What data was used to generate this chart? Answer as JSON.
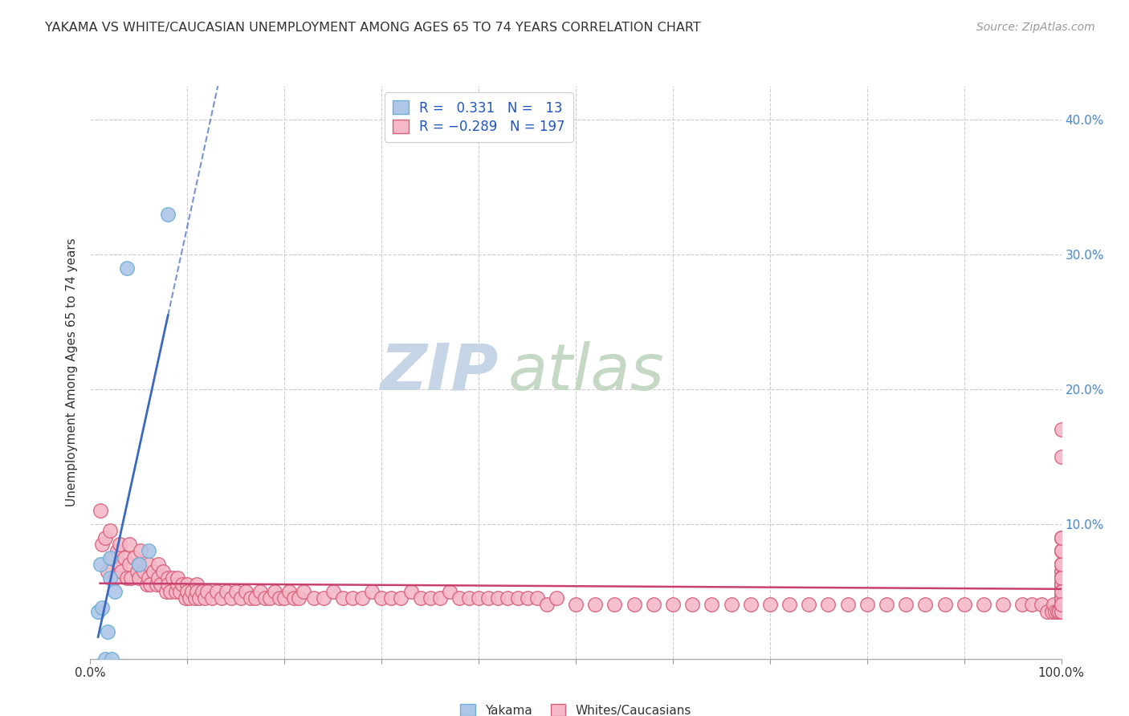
{
  "title": "YAKAMA VS WHITE/CAUCASIAN UNEMPLOYMENT AMONG AGES 65 TO 74 YEARS CORRELATION CHART",
  "source": "Source: ZipAtlas.com",
  "ylabel": "Unemployment Among Ages 65 to 74 years",
  "xlim": [
    0,
    1.0
  ],
  "ylim": [
    0,
    0.425
  ],
  "legend_r_yakama": "0.331",
  "legend_n_yakama": "13",
  "legend_r_white": "-0.289",
  "legend_n_white": "197",
  "yakama_color": "#aec6e8",
  "yakama_edge_color": "#6baed6",
  "white_color": "#f4b8c8",
  "white_edge_color": "#d6607a",
  "trendline_yakama_color": "#3a6abf",
  "trendline_white_color": "#c94070",
  "watermark_zip_color": "#c8d8e8",
  "watermark_atlas_color": "#c8d8c8",
  "background_color": "#ffffff",
  "grid_color": "#cccccc",
  "yakama_x": [
    0.008,
    0.01,
    0.012,
    0.015,
    0.018,
    0.02,
    0.02,
    0.022,
    0.025,
    0.038,
    0.05,
    0.06,
    0.08
  ],
  "yakama_y": [
    0.035,
    0.07,
    0.038,
    0.0,
    0.02,
    0.06,
    0.075,
    0.0,
    0.05,
    0.29,
    0.07,
    0.08,
    0.33
  ],
  "white_x": [
    0.01,
    0.012,
    0.015,
    0.018,
    0.02,
    0.022,
    0.025,
    0.028,
    0.03,
    0.03,
    0.032,
    0.035,
    0.038,
    0.04,
    0.04,
    0.042,
    0.045,
    0.048,
    0.05,
    0.05,
    0.052,
    0.055,
    0.058,
    0.06,
    0.06,
    0.062,
    0.065,
    0.068,
    0.07,
    0.07,
    0.072,
    0.075,
    0.078,
    0.08,
    0.08,
    0.082,
    0.085,
    0.088,
    0.09,
    0.09,
    0.092,
    0.095,
    0.098,
    0.1,
    0.1,
    0.102,
    0.105,
    0.108,
    0.11,
    0.11,
    0.112,
    0.115,
    0.118,
    0.12,
    0.125,
    0.13,
    0.135,
    0.14,
    0.145,
    0.15,
    0.155,
    0.16,
    0.165,
    0.17,
    0.175,
    0.18,
    0.185,
    0.19,
    0.195,
    0.2,
    0.205,
    0.21,
    0.215,
    0.22,
    0.23,
    0.24,
    0.25,
    0.26,
    0.27,
    0.28,
    0.29,
    0.3,
    0.31,
    0.32,
    0.33,
    0.34,
    0.35,
    0.36,
    0.37,
    0.38,
    0.39,
    0.4,
    0.41,
    0.42,
    0.43,
    0.44,
    0.45,
    0.46,
    0.47,
    0.48,
    0.5,
    0.52,
    0.54,
    0.56,
    0.58,
    0.6,
    0.62,
    0.64,
    0.66,
    0.68,
    0.7,
    0.72,
    0.74,
    0.76,
    0.78,
    0.8,
    0.82,
    0.84,
    0.86,
    0.88,
    0.9,
    0.92,
    0.94,
    0.96,
    0.97,
    0.98,
    0.985,
    0.99,
    0.992,
    0.994,
    0.996,
    0.998,
    1.0,
    1.0,
    1.0,
    1.0,
    1.0,
    1.0,
    1.0,
    1.0,
    1.0,
    1.0,
    1.0,
    1.0,
    1.0,
    1.0,
    1.0,
    1.0,
    1.0,
    1.0,
    1.0,
    1.0,
    1.0,
    1.0,
    1.0,
    1.0,
    1.0,
    1.0,
    1.0,
    1.0,
    1.0,
    1.0,
    1.0,
    1.0,
    1.0,
    1.0,
    1.0,
    1.0,
    1.0,
    1.0,
    1.0,
    1.0,
    1.0,
    1.0,
    1.0,
    1.0,
    1.0,
    1.0,
    1.0,
    1.0,
    1.0,
    1.0,
    1.0,
    1.0,
    1.0,
    1.0,
    1.0,
    1.0,
    1.0,
    1.0,
    1.0,
    1.0,
    1.0,
    1.0,
    1.0,
    1.0,
    1.0
  ],
  "white_y": [
    0.11,
    0.085,
    0.09,
    0.065,
    0.095,
    0.075,
    0.06,
    0.08,
    0.085,
    0.07,
    0.065,
    0.075,
    0.06,
    0.07,
    0.085,
    0.06,
    0.075,
    0.065,
    0.07,
    0.06,
    0.08,
    0.065,
    0.055,
    0.07,
    0.06,
    0.055,
    0.065,
    0.055,
    0.07,
    0.06,
    0.055,
    0.065,
    0.05,
    0.06,
    0.055,
    0.05,
    0.06,
    0.05,
    0.055,
    0.06,
    0.05,
    0.055,
    0.045,
    0.055,
    0.05,
    0.045,
    0.05,
    0.045,
    0.055,
    0.05,
    0.045,
    0.05,
    0.045,
    0.05,
    0.045,
    0.05,
    0.045,
    0.05,
    0.045,
    0.05,
    0.045,
    0.05,
    0.045,
    0.045,
    0.05,
    0.045,
    0.045,
    0.05,
    0.045,
    0.045,
    0.05,
    0.045,
    0.045,
    0.05,
    0.045,
    0.045,
    0.05,
    0.045,
    0.045,
    0.045,
    0.05,
    0.045,
    0.045,
    0.045,
    0.05,
    0.045,
    0.045,
    0.045,
    0.05,
    0.045,
    0.045,
    0.045,
    0.045,
    0.045,
    0.045,
    0.045,
    0.045,
    0.045,
    0.04,
    0.045,
    0.04,
    0.04,
    0.04,
    0.04,
    0.04,
    0.04,
    0.04,
    0.04,
    0.04,
    0.04,
    0.04,
    0.04,
    0.04,
    0.04,
    0.04,
    0.04,
    0.04,
    0.04,
    0.04,
    0.04,
    0.04,
    0.04,
    0.04,
    0.04,
    0.04,
    0.04,
    0.035,
    0.035,
    0.04,
    0.035,
    0.035,
    0.035,
    0.05,
    0.06,
    0.07,
    0.08,
    0.055,
    0.045,
    0.065,
    0.05,
    0.04,
    0.07,
    0.055,
    0.06,
    0.08,
    0.045,
    0.055,
    0.09,
    0.065,
    0.07,
    0.05,
    0.04,
    0.08,
    0.06,
    0.15,
    0.17,
    0.04,
    0.05,
    0.04,
    0.06,
    0.05,
    0.07,
    0.08,
    0.04,
    0.05,
    0.06,
    0.04,
    0.05,
    0.04,
    0.07,
    0.04,
    0.05,
    0.04,
    0.05,
    0.04,
    0.06,
    0.07,
    0.05,
    0.04,
    0.08,
    0.09,
    0.05,
    0.04,
    0.055,
    0.045,
    0.035,
    0.04,
    0.05,
    0.06,
    0.04,
    0.05,
    0.045,
    0.035,
    0.08,
    0.09,
    0.05,
    0.04
  ]
}
